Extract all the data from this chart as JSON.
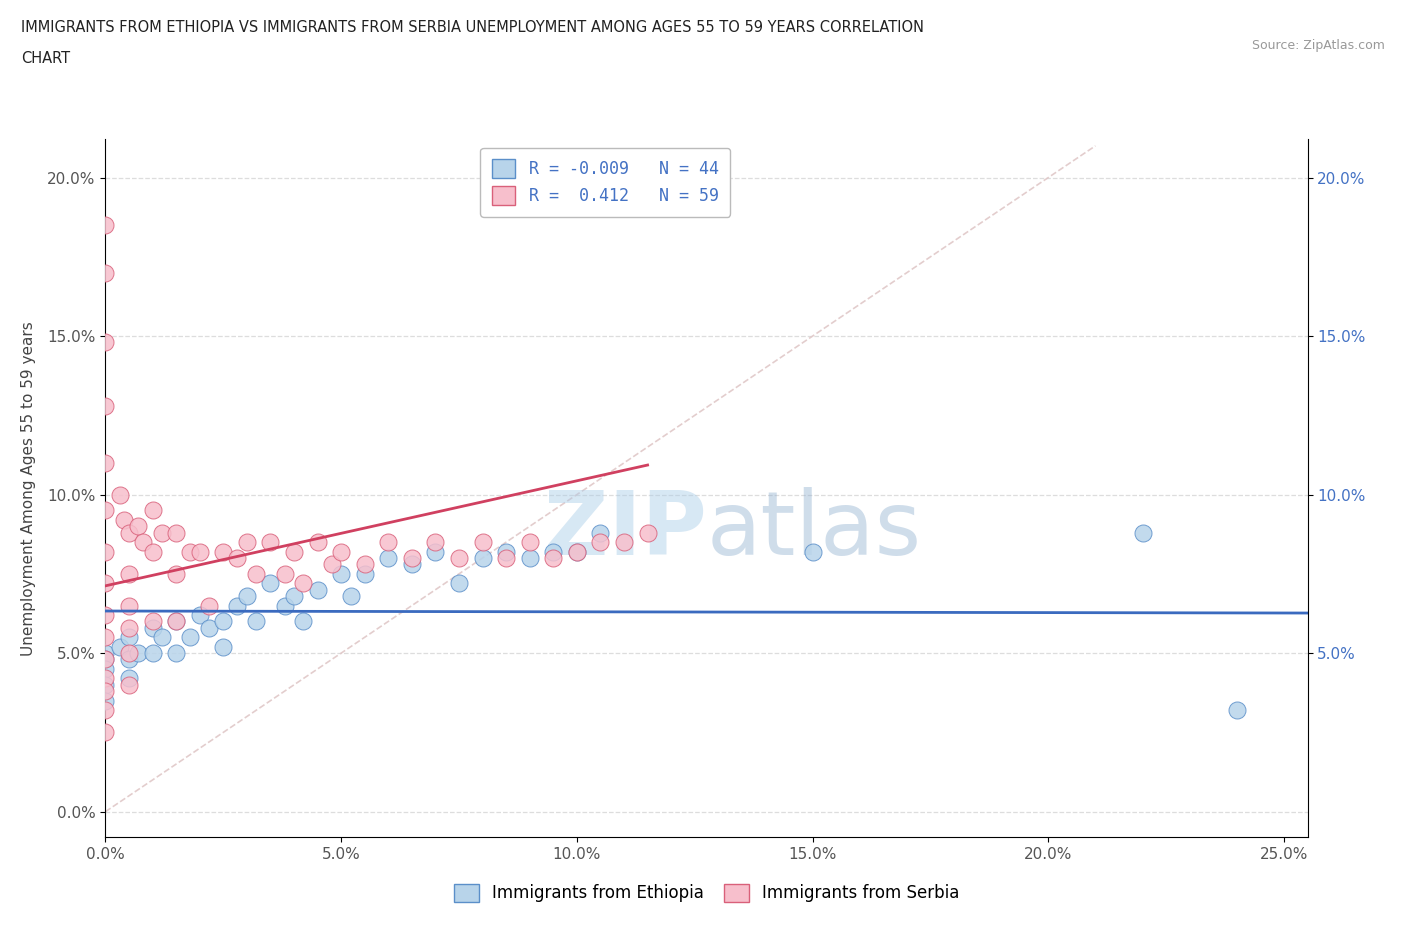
{
  "title_line1": "IMMIGRANTS FROM ETHIOPIA VS IMMIGRANTS FROM SERBIA UNEMPLOYMENT AMONG AGES 55 TO 59 YEARS CORRELATION",
  "title_line2": "CHART",
  "source": "Source: ZipAtlas.com",
  "ylabel": "Unemployment Among Ages 55 to 59 years",
  "xlim": [
    0.0,
    0.255
  ],
  "ylim": [
    -0.008,
    0.212
  ],
  "xticks": [
    0.0,
    0.05,
    0.1,
    0.15,
    0.2,
    0.25
  ],
  "xticklabels": [
    "0.0%",
    "5.0%",
    "10.0%",
    "15.0%",
    "20.0%",
    "25.0%"
  ],
  "yticks": [
    0.0,
    0.05,
    0.1,
    0.15,
    0.2
  ],
  "yticklabels": [
    "0.0%",
    "5.0%",
    "10.0%",
    "15.0%",
    "20.0%"
  ],
  "right_yticks": [
    0.05,
    0.1,
    0.15,
    0.2
  ],
  "right_yticklabels": [
    "5.0%",
    "10.0%",
    "15.0%",
    "20.0%"
  ],
  "R_ethiopia": -0.009,
  "N_ethiopia": 44,
  "R_serbia": 0.412,
  "N_serbia": 59,
  "color_ethiopia_fill": "#b8d4ea",
  "color_ethiopia_edge": "#5b8fc9",
  "color_serbia_fill": "#f7bfcc",
  "color_serbia_edge": "#d9607a",
  "color_ethiopia_line": "#3a6abf",
  "color_serbia_line": "#d04060",
  "color_diagonal": "#e0c8c8",
  "watermark_zip": "ZIP",
  "watermark_atlas": "atlas",
  "ethiopia_x": [
    0.0,
    0.0,
    0.0,
    0.0,
    0.0,
    0.003,
    0.005,
    0.005,
    0.005,
    0.007,
    0.01,
    0.01,
    0.012,
    0.015,
    0.015,
    0.018,
    0.02,
    0.022,
    0.025,
    0.025,
    0.028,
    0.03,
    0.032,
    0.035,
    0.038,
    0.04,
    0.042,
    0.045,
    0.05,
    0.052,
    0.055,
    0.06,
    0.065,
    0.07,
    0.075,
    0.08,
    0.085,
    0.09,
    0.095,
    0.1,
    0.105,
    0.15,
    0.22,
    0.24
  ],
  "ethiopia_y": [
    0.05,
    0.048,
    0.045,
    0.04,
    0.035,
    0.052,
    0.055,
    0.048,
    0.042,
    0.05,
    0.058,
    0.05,
    0.055,
    0.06,
    0.05,
    0.055,
    0.062,
    0.058,
    0.06,
    0.052,
    0.065,
    0.068,
    0.06,
    0.072,
    0.065,
    0.068,
    0.06,
    0.07,
    0.075,
    0.068,
    0.075,
    0.08,
    0.078,
    0.082,
    0.072,
    0.08,
    0.082,
    0.08,
    0.082,
    0.082,
    0.088,
    0.082,
    0.088,
    0.032
  ],
  "serbia_x": [
    0.0,
    0.0,
    0.0,
    0.0,
    0.0,
    0.0,
    0.0,
    0.0,
    0.0,
    0.0,
    0.0,
    0.0,
    0.0,
    0.0,
    0.0,
    0.003,
    0.004,
    0.005,
    0.005,
    0.005,
    0.005,
    0.005,
    0.005,
    0.007,
    0.008,
    0.01,
    0.01,
    0.01,
    0.012,
    0.015,
    0.015,
    0.015,
    0.018,
    0.02,
    0.022,
    0.025,
    0.028,
    0.03,
    0.032,
    0.035,
    0.038,
    0.04,
    0.042,
    0.045,
    0.048,
    0.05,
    0.055,
    0.06,
    0.065,
    0.07,
    0.075,
    0.08,
    0.085,
    0.09,
    0.095,
    0.1,
    0.105,
    0.11,
    0.115
  ],
  "serbia_y": [
    0.185,
    0.17,
    0.148,
    0.128,
    0.11,
    0.095,
    0.082,
    0.072,
    0.062,
    0.055,
    0.048,
    0.042,
    0.038,
    0.032,
    0.025,
    0.1,
    0.092,
    0.088,
    0.075,
    0.065,
    0.058,
    0.05,
    0.04,
    0.09,
    0.085,
    0.095,
    0.082,
    0.06,
    0.088,
    0.088,
    0.075,
    0.06,
    0.082,
    0.082,
    0.065,
    0.082,
    0.08,
    0.085,
    0.075,
    0.085,
    0.075,
    0.082,
    0.072,
    0.085,
    0.078,
    0.082,
    0.078,
    0.085,
    0.08,
    0.085,
    0.08,
    0.085,
    0.08,
    0.085,
    0.08,
    0.082,
    0.085,
    0.085,
    0.088
  ]
}
